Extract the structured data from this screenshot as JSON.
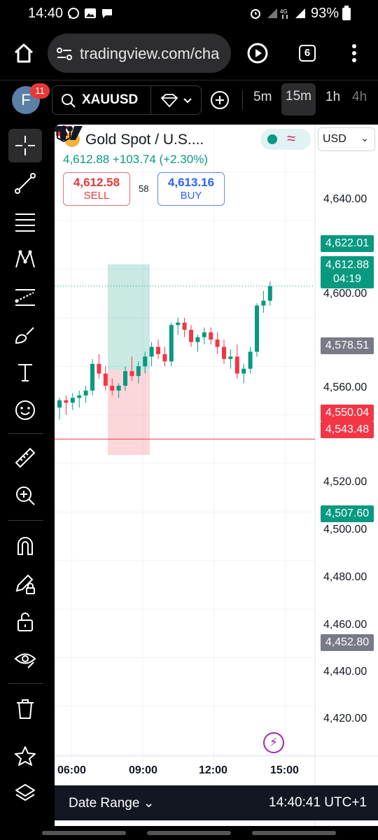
{
  "status": {
    "time": "14:40",
    "battery": "93%",
    "net": "4G"
  },
  "browser": {
    "url": "tradingview.com/cha",
    "tab_count": "6"
  },
  "toolbar": {
    "avatar_letter": "F",
    "notifications": "11",
    "symbol": "XAUUSD",
    "timeframes": [
      "5m",
      "15m",
      "1h",
      "4h"
    ],
    "active_timeframe": "15m"
  },
  "legend": {
    "title": "Gold Spot / U.S....",
    "price_line": "4,612.88  +103.74 (+2.30%)",
    "sell_price": "4,612.58",
    "sell_label": "SELL",
    "spread": "58",
    "buy_price": "4,613.16",
    "buy_label": "BUY",
    "currency": "USD"
  },
  "colors": {
    "up": "#089981",
    "down": "#f23645",
    "accent": "#2962ff"
  },
  "price_axis": {
    "ticks": [
      "4,640.00",
      "4,600.00",
      "4,560.00",
      "4,520.00",
      "4,500.00",
      "4,480.00",
      "4,460.00",
      "4,440.00",
      "4,420.00"
    ],
    "tags": [
      {
        "text": "4,622.01",
        "color": "#089981"
      },
      {
        "text": "4,612.88",
        "sub": "04:19",
        "color": "#089981"
      },
      {
        "text": "4,578.51",
        "color": "#787b86"
      },
      {
        "text": "4,550.04",
        "color": "#f23645"
      },
      {
        "text": "4,543.48",
        "color": "#f23645"
      },
      {
        "text": "4,507.60",
        "color": "#089981"
      },
      {
        "text": "4,452.80",
        "color": "#787b86"
      }
    ]
  },
  "time_axis": [
    "06:00",
    "09:00",
    "12:00",
    "15:00"
  ],
  "bottom": {
    "date_range": "Date Range",
    "clock": "14:40:41 UTC+1"
  },
  "chart_data": {
    "type": "candlestick",
    "symbol": "XAUUSD",
    "ylim": [
      4410,
      4668
    ],
    "candles": [
      [
        4563,
        4567,
        4558,
        4566
      ],
      [
        4566,
        4568,
        4560,
        4565
      ],
      [
        4565,
        4569,
        4562,
        4567
      ],
      [
        4567,
        4570,
        4563,
        4568
      ],
      [
        4568,
        4572,
        4565,
        4570
      ],
      [
        4570,
        4583,
        4568,
        4581
      ],
      [
        4581,
        4585,
        4575,
        4577
      ],
      [
        4577,
        4580,
        4570,
        4572
      ],
      [
        4572,
        4575,
        4568,
        4570
      ],
      [
        4570,
        4573,
        4567,
        4572
      ],
      [
        4572,
        4580,
        4570,
        4578
      ],
      [
        4578,
        4584,
        4574,
        4576
      ],
      [
        4576,
        4582,
        4573,
        4580
      ],
      [
        4580,
        4586,
        4577,
        4584
      ],
      [
        4584,
        4590,
        4580,
        4588
      ],
      [
        4588,
        4591,
        4583,
        4585
      ],
      [
        4585,
        4588,
        4580,
        4582
      ],
      [
        4582,
        4598,
        4580,
        4597
      ],
      [
        4597,
        4600,
        4593,
        4598
      ],
      [
        4598,
        4600,
        4592,
        4595
      ],
      [
        4595,
        4597,
        4588,
        4590
      ],
      [
        4590,
        4593,
        4586,
        4592
      ],
      [
        4592,
        4596,
        4589,
        4594
      ],
      [
        4594,
        4596,
        4589,
        4591
      ],
      [
        4591,
        4594,
        4585,
        4588
      ],
      [
        4588,
        4591,
        4581,
        4583
      ],
      [
        4583,
        4587,
        4579,
        4584
      ],
      [
        4584,
        4589,
        4575,
        4577
      ],
      [
        4577,
        4581,
        4573,
        4579
      ],
      [
        4579,
        4588,
        4577,
        4586
      ],
      [
        4586,
        4606,
        4584,
        4605
      ],
      [
        4605,
        4611,
        4602,
        4607
      ],
      [
        4607,
        4615,
        4605,
        4613
      ]
    ],
    "horizontal_lines": [
      4550.04
    ],
    "position_tool": {
      "entry": 4578.51,
      "target": 4622.01,
      "stop": 4543.48
    }
  }
}
